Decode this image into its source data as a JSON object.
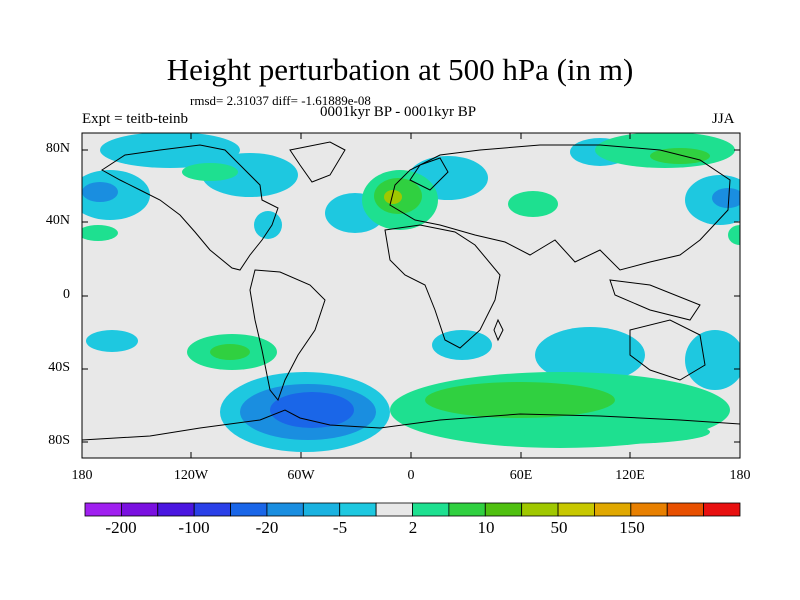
{
  "title": "Height perturbation at 500 hPa (in m)",
  "stats": "rmsd= 2.31037 diff= -1.61889e-08",
  "experiment": "Expt = teitb-teinb",
  "period": "0001kyr BP - 0001kyr BP",
  "season": "JJA",
  "lat_ticks": [
    "80N",
    "40N",
    "0",
    "40S",
    "80S"
  ],
  "lon_ticks": [
    "180",
    "120W",
    "60W",
    "0",
    "60E",
    "120E",
    "180"
  ],
  "colorbar": {
    "colors": [
      "#a020f0",
      "#7a10e0",
      "#4a16e0",
      "#2a40e8",
      "#1a66e8",
      "#1a8ee0",
      "#1ab2e0",
      "#1ec8e0",
      "#e8e8e8",
      "#1ee090",
      "#30d040",
      "#50c010",
      "#a0c800",
      "#c8c800",
      "#e0a800",
      "#e88000",
      "#e85000",
      "#e81010"
    ],
    "labels": [
      "-200",
      "-100",
      "-20",
      "-5",
      "2",
      "10",
      "50",
      "150"
    ]
  }
}
